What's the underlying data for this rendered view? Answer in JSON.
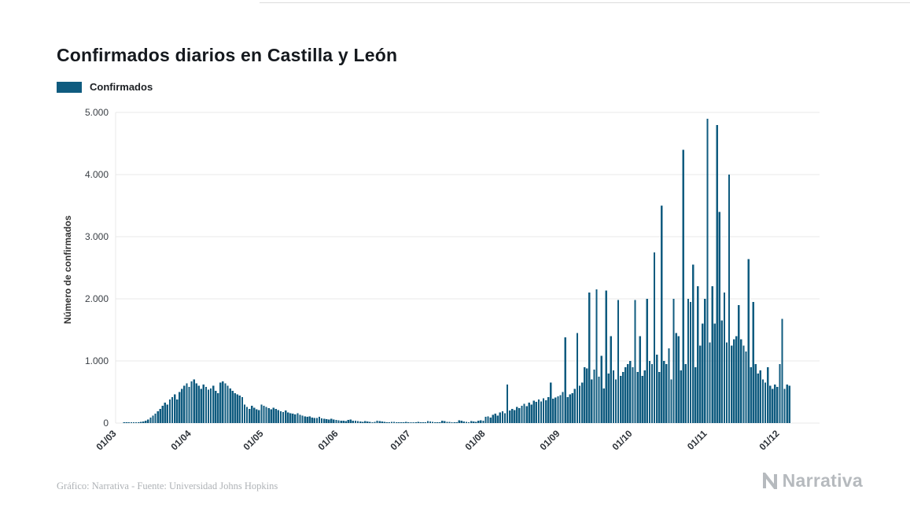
{
  "header": {
    "title": "Confirmados diarios en Castilla y León"
  },
  "legend": {
    "label": "Confirmados"
  },
  "footer": {
    "credit": "Gráfico: Narrativa - Fuente: Universidad Johns Hopkins"
  },
  "brand": {
    "name": "Narrativa"
  },
  "chart_data": {
    "type": "bar",
    "title": "Confirmados diarios en Castilla y León",
    "xlabel": "",
    "ylabel": "Número de confirmados",
    "ylim": [
      0,
      5000
    ],
    "grid": true,
    "legend_position": "top-left",
    "bar_color": "#0f5b7f",
    "grid_color": "#e8e8e8",
    "y_ticks": [
      "0",
      "1.000",
      "2.000",
      "3.000",
      "4.000",
      "5.000"
    ],
    "x_tick_labels": [
      "01/03",
      "01/04",
      "01/05",
      "01/06",
      "01/07",
      "01/08",
      "01/09",
      "01/10",
      "01/11",
      "01/12"
    ],
    "x_tick_days": [
      0,
      31,
      61,
      92,
      122,
      153,
      184,
      214,
      245,
      275
    ],
    "start_label": "01/03",
    "x_pad_days": 12,
    "values": [
      0,
      0,
      0,
      1,
      1,
      2,
      3,
      5,
      8,
      12,
      18,
      25,
      40,
      60,
      90,
      120,
      150,
      190,
      230,
      280,
      330,
      300,
      380,
      420,
      460,
      380,
      500,
      550,
      600,
      640,
      580,
      670,
      700,
      640,
      600,
      550,
      620,
      580,
      540,
      560,
      600,
      520,
      480,
      650,
      670,
      640,
      600,
      560,
      520,
      480,
      460,
      440,
      420,
      300,
      260,
      230,
      280,
      250,
      220,
      210,
      300,
      280,
      260,
      240,
      220,
      250,
      230,
      210,
      190,
      180,
      200,
      170,
      160,
      150,
      140,
      160,
      130,
      120,
      110,
      100,
      110,
      90,
      85,
      80,
      100,
      75,
      70,
      65,
      60,
      70,
      55,
      50,
      45,
      40,
      35,
      30,
      50,
      60,
      40,
      35,
      30,
      25,
      20,
      30,
      25,
      20,
      15,
      20,
      35,
      30,
      25,
      20,
      15,
      12,
      18,
      22,
      15,
      12,
      10,
      14,
      18,
      15,
      12,
      10,
      15,
      20,
      12,
      8,
      10,
      30,
      25,
      18,
      12,
      10,
      14,
      38,
      30,
      22,
      18,
      12,
      10,
      15,
      42,
      35,
      25,
      18,
      14,
      32,
      26,
      20,
      38,
      45,
      35,
      100,
      110,
      90,
      130,
      150,
      120,
      170,
      190,
      160,
      620,
      200,
      230,
      210,
      260,
      240,
      280,
      310,
      270,
      330,
      300,
      360,
      340,
      380,
      350,
      400,
      370,
      420,
      650,
      390,
      410,
      430,
      450,
      500,
      1380,
      420,
      460,
      480,
      550,
      1450,
      600,
      650,
      900,
      880,
      2100,
      700,
      860,
      2150,
      750,
      1080,
      560,
      2130,
      800,
      1400,
      850,
      700,
      1980,
      760,
      820,
      900,
      950,
      1000,
      900,
      1980,
      820,
      1400,
      760,
      850,
      2000,
      1000,
      950,
      2750,
      1100,
      820,
      3500,
      1000,
      950,
      1200,
      700,
      2000,
      1450,
      1400,
      850,
      4400,
      950,
      2000,
      1950,
      2550,
      900,
      2200,
      1250,
      1600,
      2000,
      4900,
      1300,
      2200,
      1600,
      4800,
      3400,
      1650,
      2100,
      1300,
      4000,
      1250,
      1350,
      1400,
      1900,
      1350,
      1250,
      1150,
      2640,
      900,
      1950,
      950,
      800,
      850,
      700,
      650,
      900,
      600,
      550,
      620,
      580,
      950,
      1680,
      550,
      620,
      600
    ]
  }
}
